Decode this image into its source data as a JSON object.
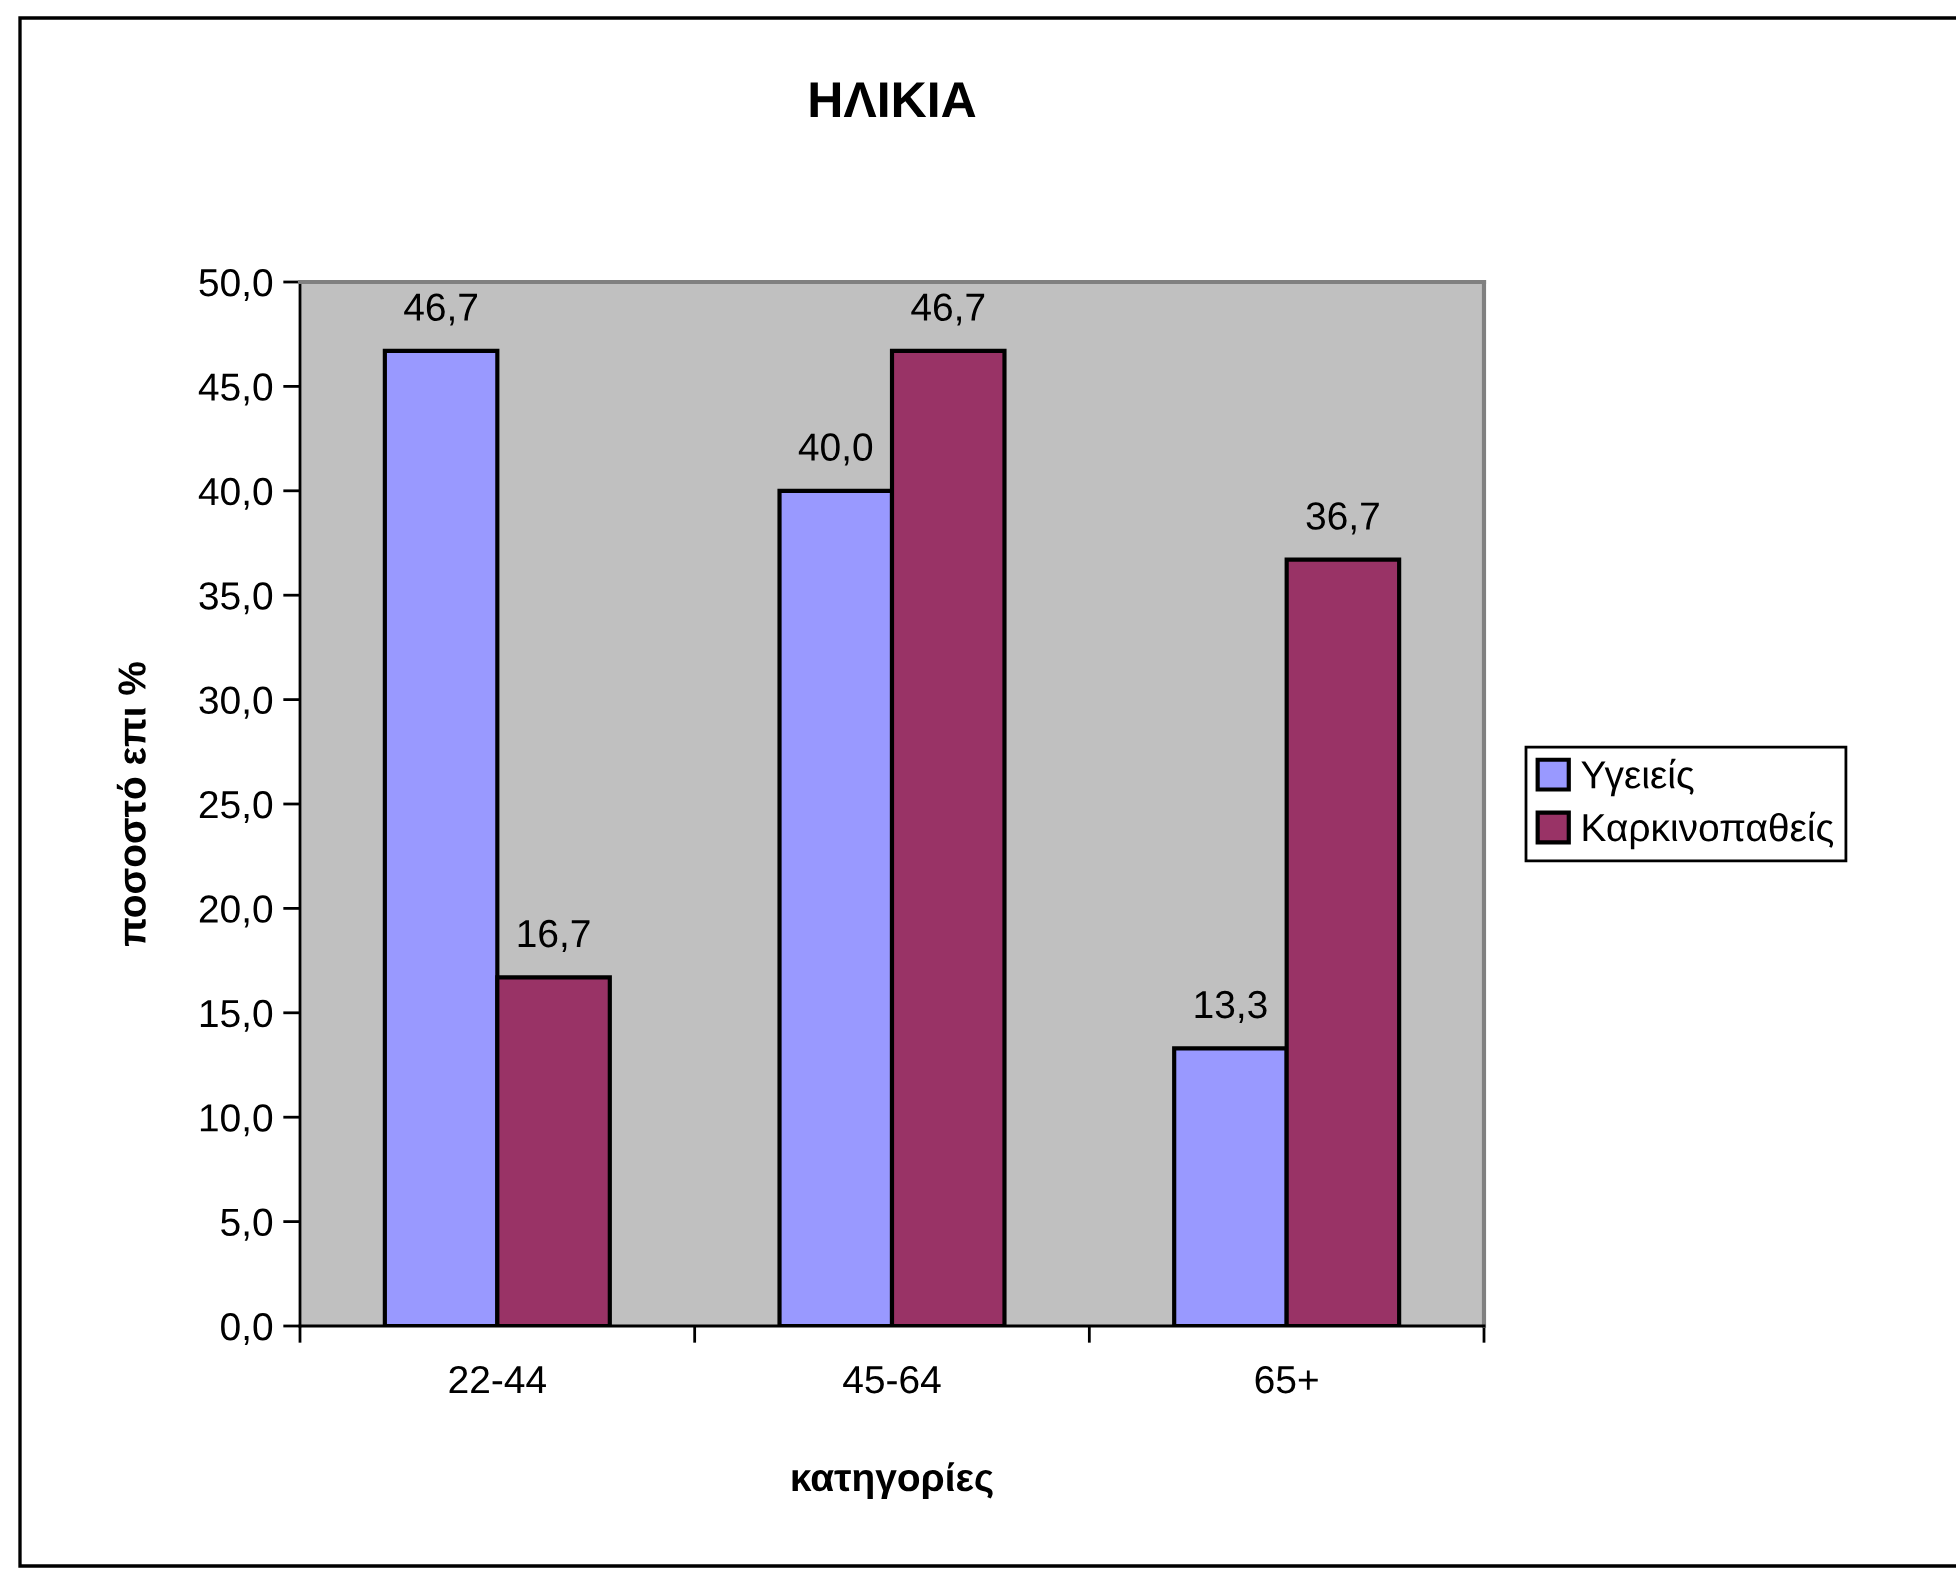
{
  "chart_data": {
    "type": "bar",
    "title": "ΗΛΙΚΙΑ",
    "xlabel": "κατηγορίες",
    "ylabel": "ποσοστό επι %",
    "categories": [
      "22-44",
      "45-64",
      "65+"
    ],
    "series": [
      {
        "name": "Υγειείς",
        "color": "#9999ff",
        "values": [
          46.7,
          40.0,
          13.3
        ],
        "value_labels": [
          "46,7",
          "40,0",
          "13,3"
        ]
      },
      {
        "name": "Καρκινοπαθείς",
        "color": "#993366",
        "values": [
          16.7,
          46.7,
          36.7
        ],
        "value_labels": [
          "16,7",
          "46,7",
          "36,7"
        ]
      }
    ],
    "ylim": [
      0,
      50
    ],
    "yticks": [
      {
        "value": 0,
        "label": "0,0"
      },
      {
        "value": 5,
        "label": "5,0"
      },
      {
        "value": 10,
        "label": "10,0"
      },
      {
        "value": 15,
        "label": "15,0"
      },
      {
        "value": 20,
        "label": "20,0"
      },
      {
        "value": 25,
        "label": "25,0"
      },
      {
        "value": 30,
        "label": "30,0"
      },
      {
        "value": 35,
        "label": "35,0"
      },
      {
        "value": 40,
        "label": "40,0"
      },
      {
        "value": 45,
        "label": "45,0"
      },
      {
        "value": 50,
        "label": "50,0"
      }
    ],
    "legend": "right"
  }
}
